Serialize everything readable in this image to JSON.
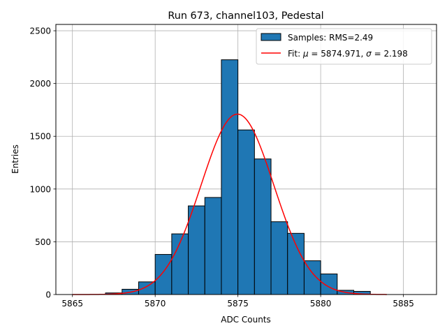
{
  "chart_data": {
    "type": "bar",
    "title": "Run 673, channel103, Pedestal",
    "xlabel": "ADC Counts",
    "ylabel": "Entries",
    "xlim": [
      5864.0,
      5887.0
    ],
    "ylim": [
      0,
      2560
    ],
    "xticks": [
      5865,
      5870,
      5875,
      5880,
      5885
    ],
    "yticks": [
      0,
      500,
      1000,
      1500,
      2000,
      2500
    ],
    "grid": true,
    "legend_position": "top-right",
    "histogram": {
      "name": "Samples: RMS=2.49",
      "color": "#1f77b4",
      "bins": [
        {
          "left": 5867,
          "right": 5868,
          "count": 15
        },
        {
          "left": 5868,
          "right": 5869,
          "count": 50
        },
        {
          "left": 5869,
          "right": 5870,
          "count": 120
        },
        {
          "left": 5870,
          "right": 5871,
          "count": 380
        },
        {
          "left": 5871,
          "right": 5872,
          "count": 575
        },
        {
          "left": 5872,
          "right": 5873,
          "count": 840
        },
        {
          "left": 5873,
          "right": 5874,
          "count": 920
        },
        {
          "left": 5874,
          "right": 5875,
          "count": 2225
        },
        {
          "left": 5875,
          "right": 5876,
          "count": 1560
        },
        {
          "left": 5876,
          "right": 5877,
          "count": 1285
        },
        {
          "left": 5877,
          "right": 5878,
          "count": 690
        },
        {
          "left": 5878,
          "right": 5879,
          "count": 580
        },
        {
          "left": 5879,
          "right": 5880,
          "count": 320
        },
        {
          "left": 5880,
          "right": 5881,
          "count": 195
        },
        {
          "left": 5881,
          "right": 5882,
          "count": 40
        },
        {
          "left": 5882,
          "right": 5883,
          "count": 30
        }
      ]
    },
    "fit": {
      "name": "Fit: μ = 5874.971, σ = 2.198",
      "label_prefix": "Fit: ",
      "mu_symbol": "μ",
      "mu_text": " = 5874.971, ",
      "sigma_symbol": "σ",
      "sigma_text": " = 2.198",
      "color": "#ff0000",
      "mu": 5874.971,
      "sigma": 2.198,
      "amplitude": 1710,
      "x_range": [
        5865,
        5884
      ]
    }
  }
}
